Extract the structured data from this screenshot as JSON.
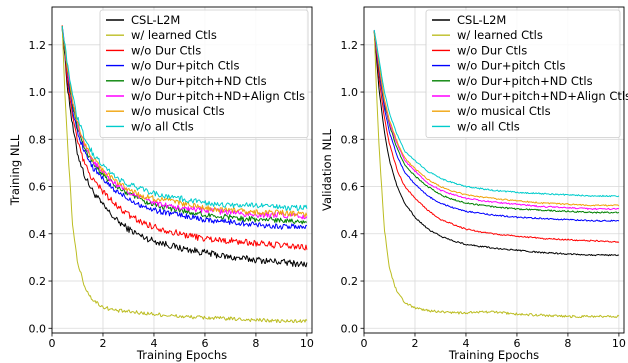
{
  "figure": {
    "panels": [
      "training",
      "validation"
    ]
  },
  "chart_data": [
    {
      "type": "line",
      "id": "training",
      "title": "",
      "xlabel": "Training Epochs",
      "ylabel": "Training NLL",
      "xlim": [
        0,
        10.2
      ],
      "ylim": [
        -0.02,
        1.36
      ],
      "xticks": [
        0,
        2,
        4,
        6,
        8,
        10
      ],
      "yticks": [
        0.0,
        0.2,
        0.4,
        0.6,
        0.8,
        1.0,
        1.2
      ],
      "grid": true,
      "legend_position": "top-right",
      "x": [
        0.4,
        0.5,
        0.6,
        0.8,
        1.0,
        1.3,
        1.6,
        2.0,
        2.5,
        3.0,
        3.5,
        4.0,
        5.0,
        6.0,
        7.0,
        8.0,
        9.0,
        10.0
      ],
      "series": [
        {
          "name": "CSL-L2M",
          "color": "#000000",
          "noise": 0.014,
          "values": [
            1.28,
            1.15,
            1.03,
            0.86,
            0.74,
            0.64,
            0.58,
            0.52,
            0.46,
            0.42,
            0.39,
            0.37,
            0.34,
            0.32,
            0.3,
            0.29,
            0.28,
            0.27
          ]
        },
        {
          "name": "w/ learned Ctls",
          "color": "#bcbd22",
          "noise": 0.008,
          "values": [
            1.28,
            1.0,
            0.8,
            0.45,
            0.28,
            0.17,
            0.12,
            0.09,
            0.075,
            0.07,
            0.065,
            0.06,
            0.05,
            0.045,
            0.04,
            0.035,
            0.03,
            0.03
          ]
        },
        {
          "name": "w/o Dur Ctls",
          "color": "#ff0000",
          "noise": 0.014,
          "values": [
            1.28,
            1.17,
            1.06,
            0.9,
            0.79,
            0.69,
            0.63,
            0.58,
            0.52,
            0.48,
            0.45,
            0.43,
            0.4,
            0.38,
            0.37,
            0.36,
            0.35,
            0.34
          ]
        },
        {
          "name": "w/o Dur+pitch Ctls",
          "color": "#0000ff",
          "noise": 0.012,
          "values": [
            1.28,
            1.18,
            1.08,
            0.93,
            0.83,
            0.74,
            0.68,
            0.63,
            0.58,
            0.55,
            0.52,
            0.5,
            0.48,
            0.46,
            0.45,
            0.44,
            0.43,
            0.43
          ]
        },
        {
          "name": "w/o Dur+pitch+ND Ctls",
          "color": "#008000",
          "noise": 0.012,
          "values": [
            1.28,
            1.18,
            1.09,
            0.95,
            0.85,
            0.76,
            0.7,
            0.65,
            0.6,
            0.57,
            0.54,
            0.52,
            0.5,
            0.48,
            0.47,
            0.46,
            0.46,
            0.45
          ]
        },
        {
          "name": "w/o Dur+pitch+ND+Align Ctls",
          "color": "#ff00ff",
          "noise": 0.012,
          "values": [
            1.28,
            1.19,
            1.1,
            0.96,
            0.86,
            0.77,
            0.71,
            0.66,
            0.61,
            0.58,
            0.55,
            0.53,
            0.51,
            0.5,
            0.49,
            0.48,
            0.48,
            0.47
          ]
        },
        {
          "name": "w/o musical Ctls",
          "color": "#f0a30a",
          "noise": 0.012,
          "values": [
            1.28,
            1.19,
            1.1,
            0.97,
            0.87,
            0.78,
            0.72,
            0.67,
            0.62,
            0.59,
            0.56,
            0.55,
            0.53,
            0.51,
            0.5,
            0.49,
            0.49,
            0.48
          ]
        },
        {
          "name": "w/o all Ctls",
          "color": "#00cccc",
          "noise": 0.012,
          "values": [
            1.28,
            1.2,
            1.12,
            0.99,
            0.89,
            0.8,
            0.74,
            0.69,
            0.64,
            0.61,
            0.59,
            0.57,
            0.55,
            0.53,
            0.52,
            0.52,
            0.51,
            0.51
          ]
        }
      ]
    },
    {
      "type": "line",
      "id": "validation",
      "title": "",
      "xlabel": "Training Epochs",
      "ylabel": "Validation NLL",
      "xlim": [
        0,
        10.2
      ],
      "ylim": [
        -0.02,
        1.36
      ],
      "xticks": [
        0,
        2,
        4,
        6,
        8,
        10
      ],
      "yticks": [
        0.0,
        0.2,
        0.4,
        0.6,
        0.8,
        1.0,
        1.2
      ],
      "grid": true,
      "legend_position": "top-right",
      "x": [
        0.4,
        0.5,
        0.6,
        0.8,
        1.0,
        1.3,
        1.6,
        2.0,
        2.5,
        3.0,
        3.5,
        4.0,
        5.0,
        6.0,
        7.0,
        8.0,
        9.0,
        10.0
      ],
      "series": [
        {
          "name": "CSL-L2M",
          "color": "#000000",
          "noise": 0.003,
          "values": [
            1.26,
            1.13,
            1.0,
            0.83,
            0.71,
            0.6,
            0.53,
            0.47,
            0.42,
            0.39,
            0.37,
            0.355,
            0.34,
            0.33,
            0.32,
            0.315,
            0.31,
            0.31
          ]
        },
        {
          "name": "w/ learned Ctls",
          "color": "#bcbd22",
          "noise": 0.005,
          "values": [
            1.26,
            0.98,
            0.75,
            0.42,
            0.25,
            0.15,
            0.11,
            0.085,
            0.075,
            0.07,
            0.065,
            0.065,
            0.07,
            0.06,
            0.055,
            0.05,
            0.05,
            0.05
          ]
        },
        {
          "name": "w/o Dur Ctls",
          "color": "#ff0000",
          "noise": 0.003,
          "values": [
            1.26,
            1.16,
            1.05,
            0.89,
            0.78,
            0.67,
            0.6,
            0.55,
            0.5,
            0.46,
            0.44,
            0.42,
            0.4,
            0.39,
            0.38,
            0.375,
            0.37,
            0.365
          ]
        },
        {
          "name": "w/o Dur+pitch Ctls",
          "color": "#0000ff",
          "noise": 0.003,
          "values": [
            1.26,
            1.17,
            1.08,
            0.93,
            0.83,
            0.73,
            0.66,
            0.61,
            0.56,
            0.53,
            0.51,
            0.495,
            0.48,
            0.47,
            0.465,
            0.46,
            0.455,
            0.455
          ]
        },
        {
          "name": "w/o Dur+pitch+ND Ctls",
          "color": "#008000",
          "noise": 0.003,
          "values": [
            1.26,
            1.18,
            1.09,
            0.95,
            0.86,
            0.76,
            0.69,
            0.645,
            0.6,
            0.565,
            0.545,
            0.53,
            0.515,
            0.505,
            0.5,
            0.495,
            0.49,
            0.49
          ]
        },
        {
          "name": "w/o Dur+pitch+ND+Align Ctls",
          "color": "#ff00ff",
          "noise": 0.003,
          "values": [
            1.26,
            1.18,
            1.1,
            0.96,
            0.87,
            0.78,
            0.71,
            0.665,
            0.615,
            0.585,
            0.565,
            0.55,
            0.535,
            0.525,
            0.515,
            0.51,
            0.505,
            0.505
          ]
        },
        {
          "name": "w/o musical Ctls",
          "color": "#f0a30a",
          "noise": 0.003,
          "values": [
            1.26,
            1.19,
            1.11,
            0.97,
            0.88,
            0.79,
            0.72,
            0.675,
            0.63,
            0.6,
            0.58,
            0.565,
            0.55,
            0.54,
            0.53,
            0.525,
            0.52,
            0.52
          ]
        },
        {
          "name": "w/o all Ctls",
          "color": "#00cccc",
          "noise": 0.003,
          "values": [
            1.26,
            1.2,
            1.13,
            1.0,
            0.91,
            0.82,
            0.75,
            0.71,
            0.665,
            0.635,
            0.615,
            0.6,
            0.585,
            0.575,
            0.57,
            0.565,
            0.56,
            0.56
          ]
        }
      ]
    }
  ]
}
